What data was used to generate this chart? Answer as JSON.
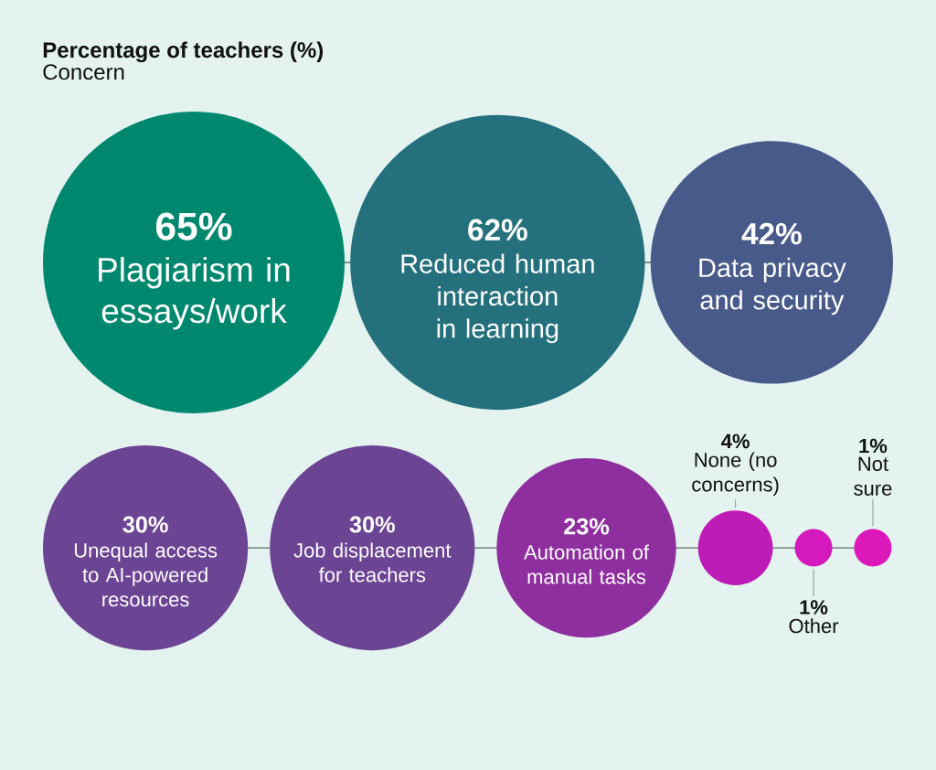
{
  "chart_data": {
    "type": "other",
    "title": "Percentage of teachers (%)",
    "subtitle": "Concern",
    "categories": [
      "Plagiarism in essays/work",
      "Reduced human interaction in learning",
      "Data privacy and security",
      "Unequal access to AI-powered resources",
      "Job displacement for teachers",
      "Automation of manual tasks",
      "None (no concerns)",
      "Other",
      "Not sure"
    ],
    "values": [
      65,
      62,
      42,
      30,
      30,
      23,
      4,
      1,
      1
    ],
    "value_labels": [
      "65%",
      "62%",
      "42%",
      "30%",
      "30%",
      "23%",
      "4%",
      "1%",
      "1%"
    ],
    "colors": [
      "#00886f",
      "#24717d",
      "#485a89",
      "#6c4494",
      "#6c4494",
      "#8f2e9f",
      "#be1cb6",
      "#d41abc",
      "#dc18bb"
    ]
  }
}
